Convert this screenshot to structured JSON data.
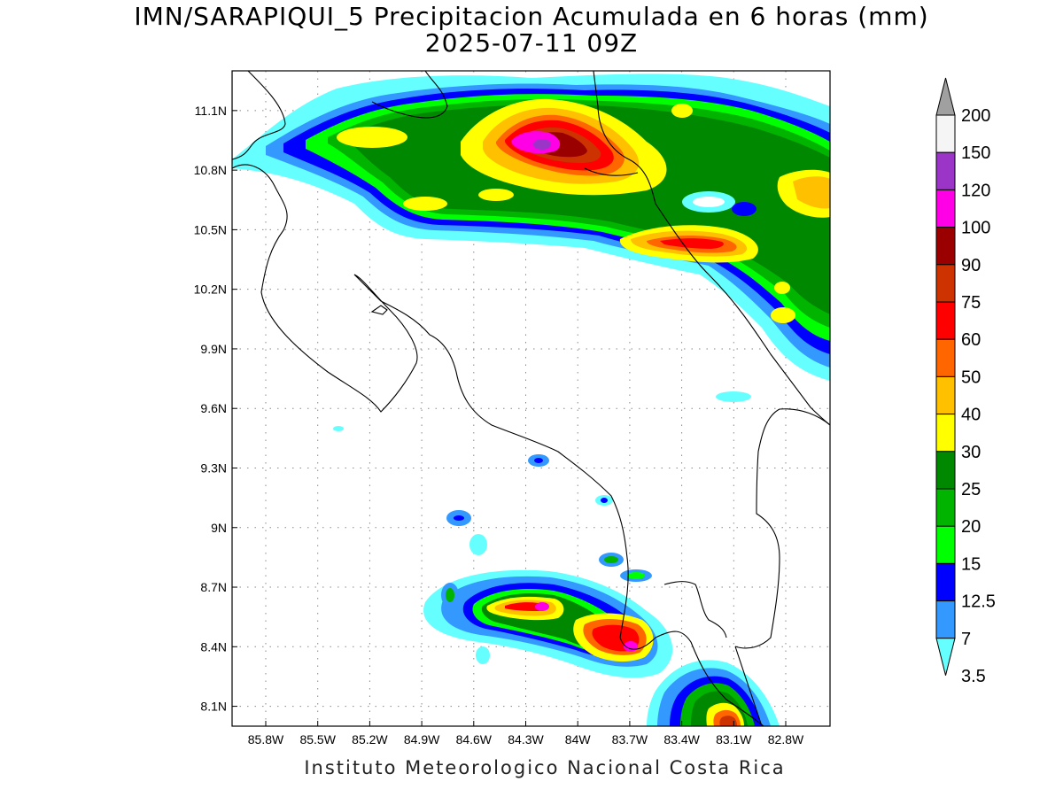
{
  "header": {
    "title": "IMN/SARAPIQUI_5 Precipitacion Acumulada en 6 horas (mm)",
    "subtitle": "2025-07-11 09Z"
  },
  "map": {
    "lat_ticks": [
      "11.1N",
      "10.8N",
      "10.5N",
      "10.2N",
      "9.9N",
      "9.6N",
      "9.3N",
      "9N",
      "8.7N",
      "8.4N",
      "8.1N"
    ],
    "lon_ticks": [
      "85.8W",
      "85.5W",
      "85.2W",
      "84.9W",
      "84.6W",
      "84.3W",
      "84W",
      "83.7W",
      "83.4W",
      "83.1W",
      "82.8W"
    ],
    "lat_range": [
      8.0,
      11.3
    ],
    "lon_range": [
      -86.0,
      -83.0
    ],
    "gridlines": true
  },
  "colorbar": {
    "labels": [
      "200",
      "150",
      "120",
      "100",
      "90",
      "75",
      "60",
      "50",
      "40",
      "30",
      "25",
      "20",
      "15",
      "12.5",
      "7",
      "3.5"
    ],
    "colors": [
      "#a0a0a0",
      "#f5f5f5",
      "#9a35c8",
      "#ff00e6",
      "#9b0000",
      "#cc3300",
      "#ff0000",
      "#ff6600",
      "#ffc000",
      "#ffff00",
      "#008800",
      "#00b400",
      "#00ff00",
      "#0000ff",
      "#3399ff",
      "#66ffff"
    ]
  },
  "footer": {
    "credit": "Instituto Meteorologico Nacional Costa Rica"
  }
}
